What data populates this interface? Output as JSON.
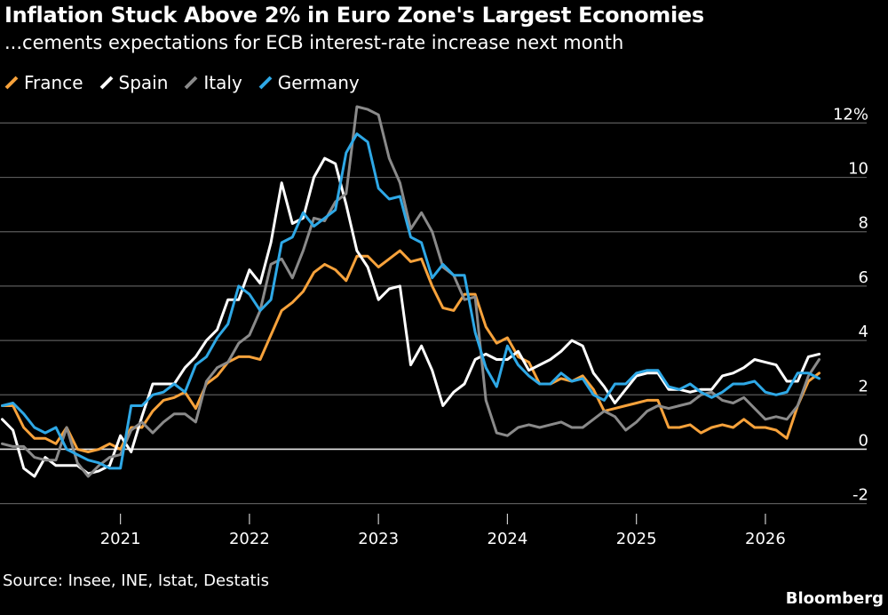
{
  "header": {
    "title": "Inflation Stuck Above 2% in Euro Zone's Largest Economies",
    "subtitle": "...cements expectations for ECB interest-rate increase next month"
  },
  "footer": {
    "source": "Source: Insee, INE, Istat, Destatis",
    "brand": "Bloomberg"
  },
  "chart_data": {
    "type": "line",
    "x_start": "2020-02",
    "x_step": "month",
    "xlim": [
      2020.08,
      2026.62
    ],
    "ylim": [
      -2.6,
      12.6
    ],
    "yticks": [
      -2,
      0,
      2,
      4,
      6,
      8,
      10,
      12
    ],
    "ytick_labels": [
      "-2",
      "0",
      "2",
      "4",
      "6",
      "8",
      "10",
      "12%"
    ],
    "xticks": [
      2021,
      2022,
      2023,
      2024,
      2025,
      2026
    ],
    "xtick_labels": [
      "2021",
      "2022",
      "2023",
      "2024",
      "2025",
      "2026"
    ],
    "grid": "horizontal",
    "legend_position": "top-left",
    "series": [
      {
        "name": "France",
        "color": "#f7a23b",
        "values": [
          1.6,
          1.6,
          0.8,
          0.4,
          0.4,
          0.2,
          0.8,
          0.0,
          -0.1,
          0.0,
          0.2,
          0.0,
          0.8,
          0.8,
          1.4,
          1.8,
          1.9,
          2.1,
          1.5,
          2.4,
          2.7,
          3.2,
          3.4,
          3.4,
          3.3,
          4.2,
          5.1,
          5.4,
          5.8,
          6.5,
          6.8,
          6.6,
          6.2,
          7.1,
          7.1,
          6.7,
          7.0,
          7.3,
          6.9,
          7.0,
          6.0,
          5.2,
          5.1,
          5.7,
          5.7,
          4.5,
          3.9,
          4.1,
          3.4,
          3.2,
          2.4,
          2.4,
          2.6,
          2.5,
          2.7,
          2.2,
          1.4,
          1.5,
          1.6,
          1.7,
          1.8,
          1.8,
          0.8,
          0.8,
          0.9,
          0.6,
          0.8,
          0.9,
          0.8,
          1.1,
          0.8,
          0.8,
          0.7,
          0.4,
          1.6,
          2.5,
          2.8
        ]
      },
      {
        "name": "Spain",
        "color": "#ffffff",
        "values": [
          1.1,
          0.7,
          -0.7,
          -1.0,
          -0.3,
          -0.6,
          -0.6,
          -0.6,
          -0.9,
          -0.8,
          -0.6,
          0.5,
          -0.1,
          1.2,
          2.4,
          2.4,
          2.4,
          3.0,
          3.4,
          4.0,
          4.4,
          5.5,
          5.5,
          6.6,
          6.1,
          7.6,
          9.8,
          8.3,
          8.5,
          10.0,
          10.7,
          10.5,
          9.0,
          7.3,
          6.7,
          5.5,
          5.9,
          6.0,
          3.1,
          3.8,
          2.9,
          1.6,
          2.1,
          2.4,
          3.3,
          3.5,
          3.3,
          3.3,
          3.6,
          2.9,
          3.1,
          3.3,
          3.6,
          4.0,
          3.8,
          2.8,
          2.3,
          1.7,
          2.2,
          2.7,
          2.8,
          2.8,
          2.2,
          2.2,
          2.1,
          2.2,
          2.2,
          2.7,
          2.8,
          3.0,
          3.3,
          3.2,
          3.1,
          2.5,
          2.5,
          3.4,
          3.5
        ]
      },
      {
        "name": "Italy",
        "color": "#8a8a8a",
        "values": [
          0.2,
          0.1,
          0.1,
          -0.3,
          -0.4,
          -0.4,
          0.8,
          -0.5,
          -1.0,
          -0.6,
          -0.3,
          -0.2,
          0.7,
          1.0,
          0.6,
          1.0,
          1.3,
          1.3,
          1.0,
          2.5,
          3.0,
          3.2,
          3.9,
          4.2,
          5.1,
          6.8,
          7.0,
          6.3,
          7.3,
          8.5,
          8.4,
          9.1,
          9.4,
          12.6,
          12.5,
          12.3,
          10.7,
          9.8,
          8.1,
          8.7,
          8.0,
          6.7,
          6.4,
          5.5,
          5.6,
          1.8,
          0.6,
          0.5,
          0.8,
          0.9,
          0.8,
          0.9,
          1.0,
          0.8,
          0.8,
          1.1,
          1.4,
          1.2,
          0.7,
          1.0,
          1.4,
          1.6,
          1.5,
          1.6,
          1.7,
          2.0,
          2.1,
          1.8,
          1.7,
          1.9,
          1.5,
          1.1,
          1.2,
          1.1,
          1.6,
          2.7,
          3.3
        ]
      },
      {
        "name": "Germany",
        "color": "#2ea8e6",
        "values": [
          1.6,
          1.7,
          1.3,
          0.8,
          0.6,
          0.8,
          0.0,
          -0.2,
          -0.4,
          -0.5,
          -0.7,
          -0.7,
          1.6,
          1.6,
          2.0,
          2.1,
          2.4,
          2.1,
          3.1,
          3.4,
          4.1,
          4.6,
          6.0,
          5.7,
          5.1,
          5.5,
          7.6,
          7.8,
          8.7,
          8.2,
          8.5,
          8.8,
          10.9,
          11.6,
          11.3,
          9.6,
          9.2,
          9.3,
          7.8,
          7.6,
          6.3,
          6.8,
          6.4,
          6.4,
          4.3,
          3.0,
          2.3,
          3.8,
          3.1,
          2.7,
          2.4,
          2.4,
          2.8,
          2.5,
          2.6,
          2.0,
          1.8,
          2.4,
          2.4,
          2.8,
          2.9,
          2.9,
          2.3,
          2.2,
          2.4,
          2.1,
          1.9,
          2.1,
          2.4,
          2.4,
          2.5,
          2.1,
          2.0,
          2.1,
          2.8,
          2.8,
          2.6
        ]
      }
    ]
  }
}
